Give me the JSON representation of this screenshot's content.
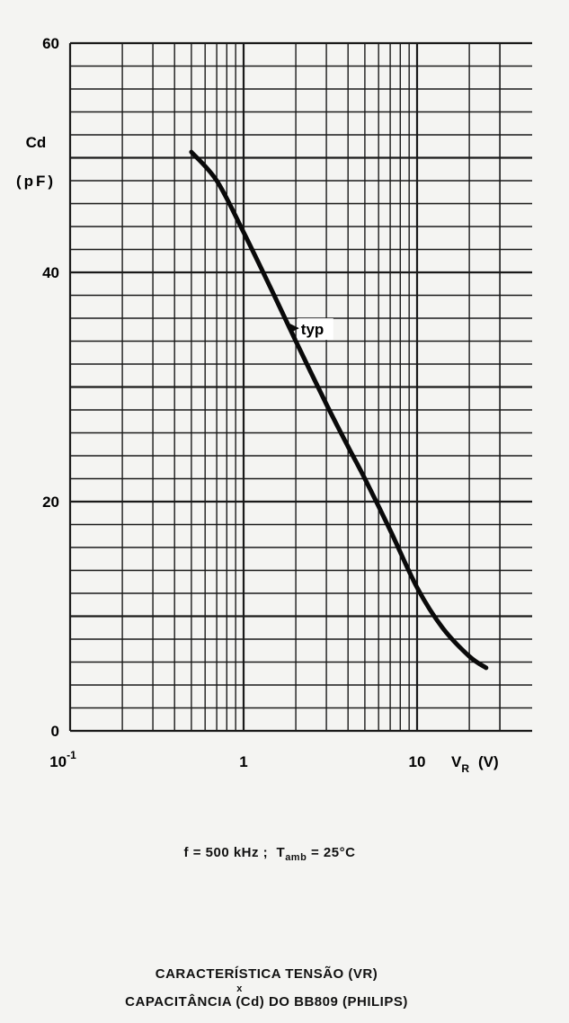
{
  "chart_data": {
    "type": "line",
    "x_scale": "log",
    "xlim": [
      0.1,
      30
    ],
    "ylim": [
      0,
      60
    ],
    "x_ticks": [
      {
        "value": 0.1,
        "label": "10",
        "exp": "-1"
      },
      {
        "value": 1,
        "label": "1"
      },
      {
        "value": 10,
        "label": "10"
      }
    ],
    "y_ticks": [
      {
        "value": 0,
        "label": "0"
      },
      {
        "value": 20,
        "label": "20"
      },
      {
        "value": 40,
        "label": "40"
      },
      {
        "value": 60,
        "label": "60"
      }
    ],
    "ylabel_line1": "Cd",
    "ylabel_line2": "(pF)",
    "xlabel_main": "V",
    "xlabel_sub": "R",
    "xlabel_unit": "(V)",
    "grid": true,
    "series": [
      {
        "annotation": "typ",
        "x": [
          0.5,
          0.7,
          1.0,
          1.5,
          2.0,
          3.0,
          4.0,
          5.0,
          7.0,
          10.0,
          14.0,
          20.0,
          25.0
        ],
        "y": [
          50.5,
          48.0,
          43.5,
          38.0,
          34.0,
          28.5,
          24.8,
          22.0,
          17.5,
          12.5,
          9.0,
          6.5,
          5.5
        ]
      }
    ]
  },
  "conditions": {
    "f": "f = 500 kHz ;",
    "t_main": "T",
    "t_sub": "amb",
    "t_value": "= 25°C"
  },
  "caption": {
    "line1": "CARACTERÍSTICA TENSÃO (VR)",
    "line2": "x",
    "line3": "CAPACITÂNCIA (Cd) DO BB809 (PHILIPS)"
  }
}
